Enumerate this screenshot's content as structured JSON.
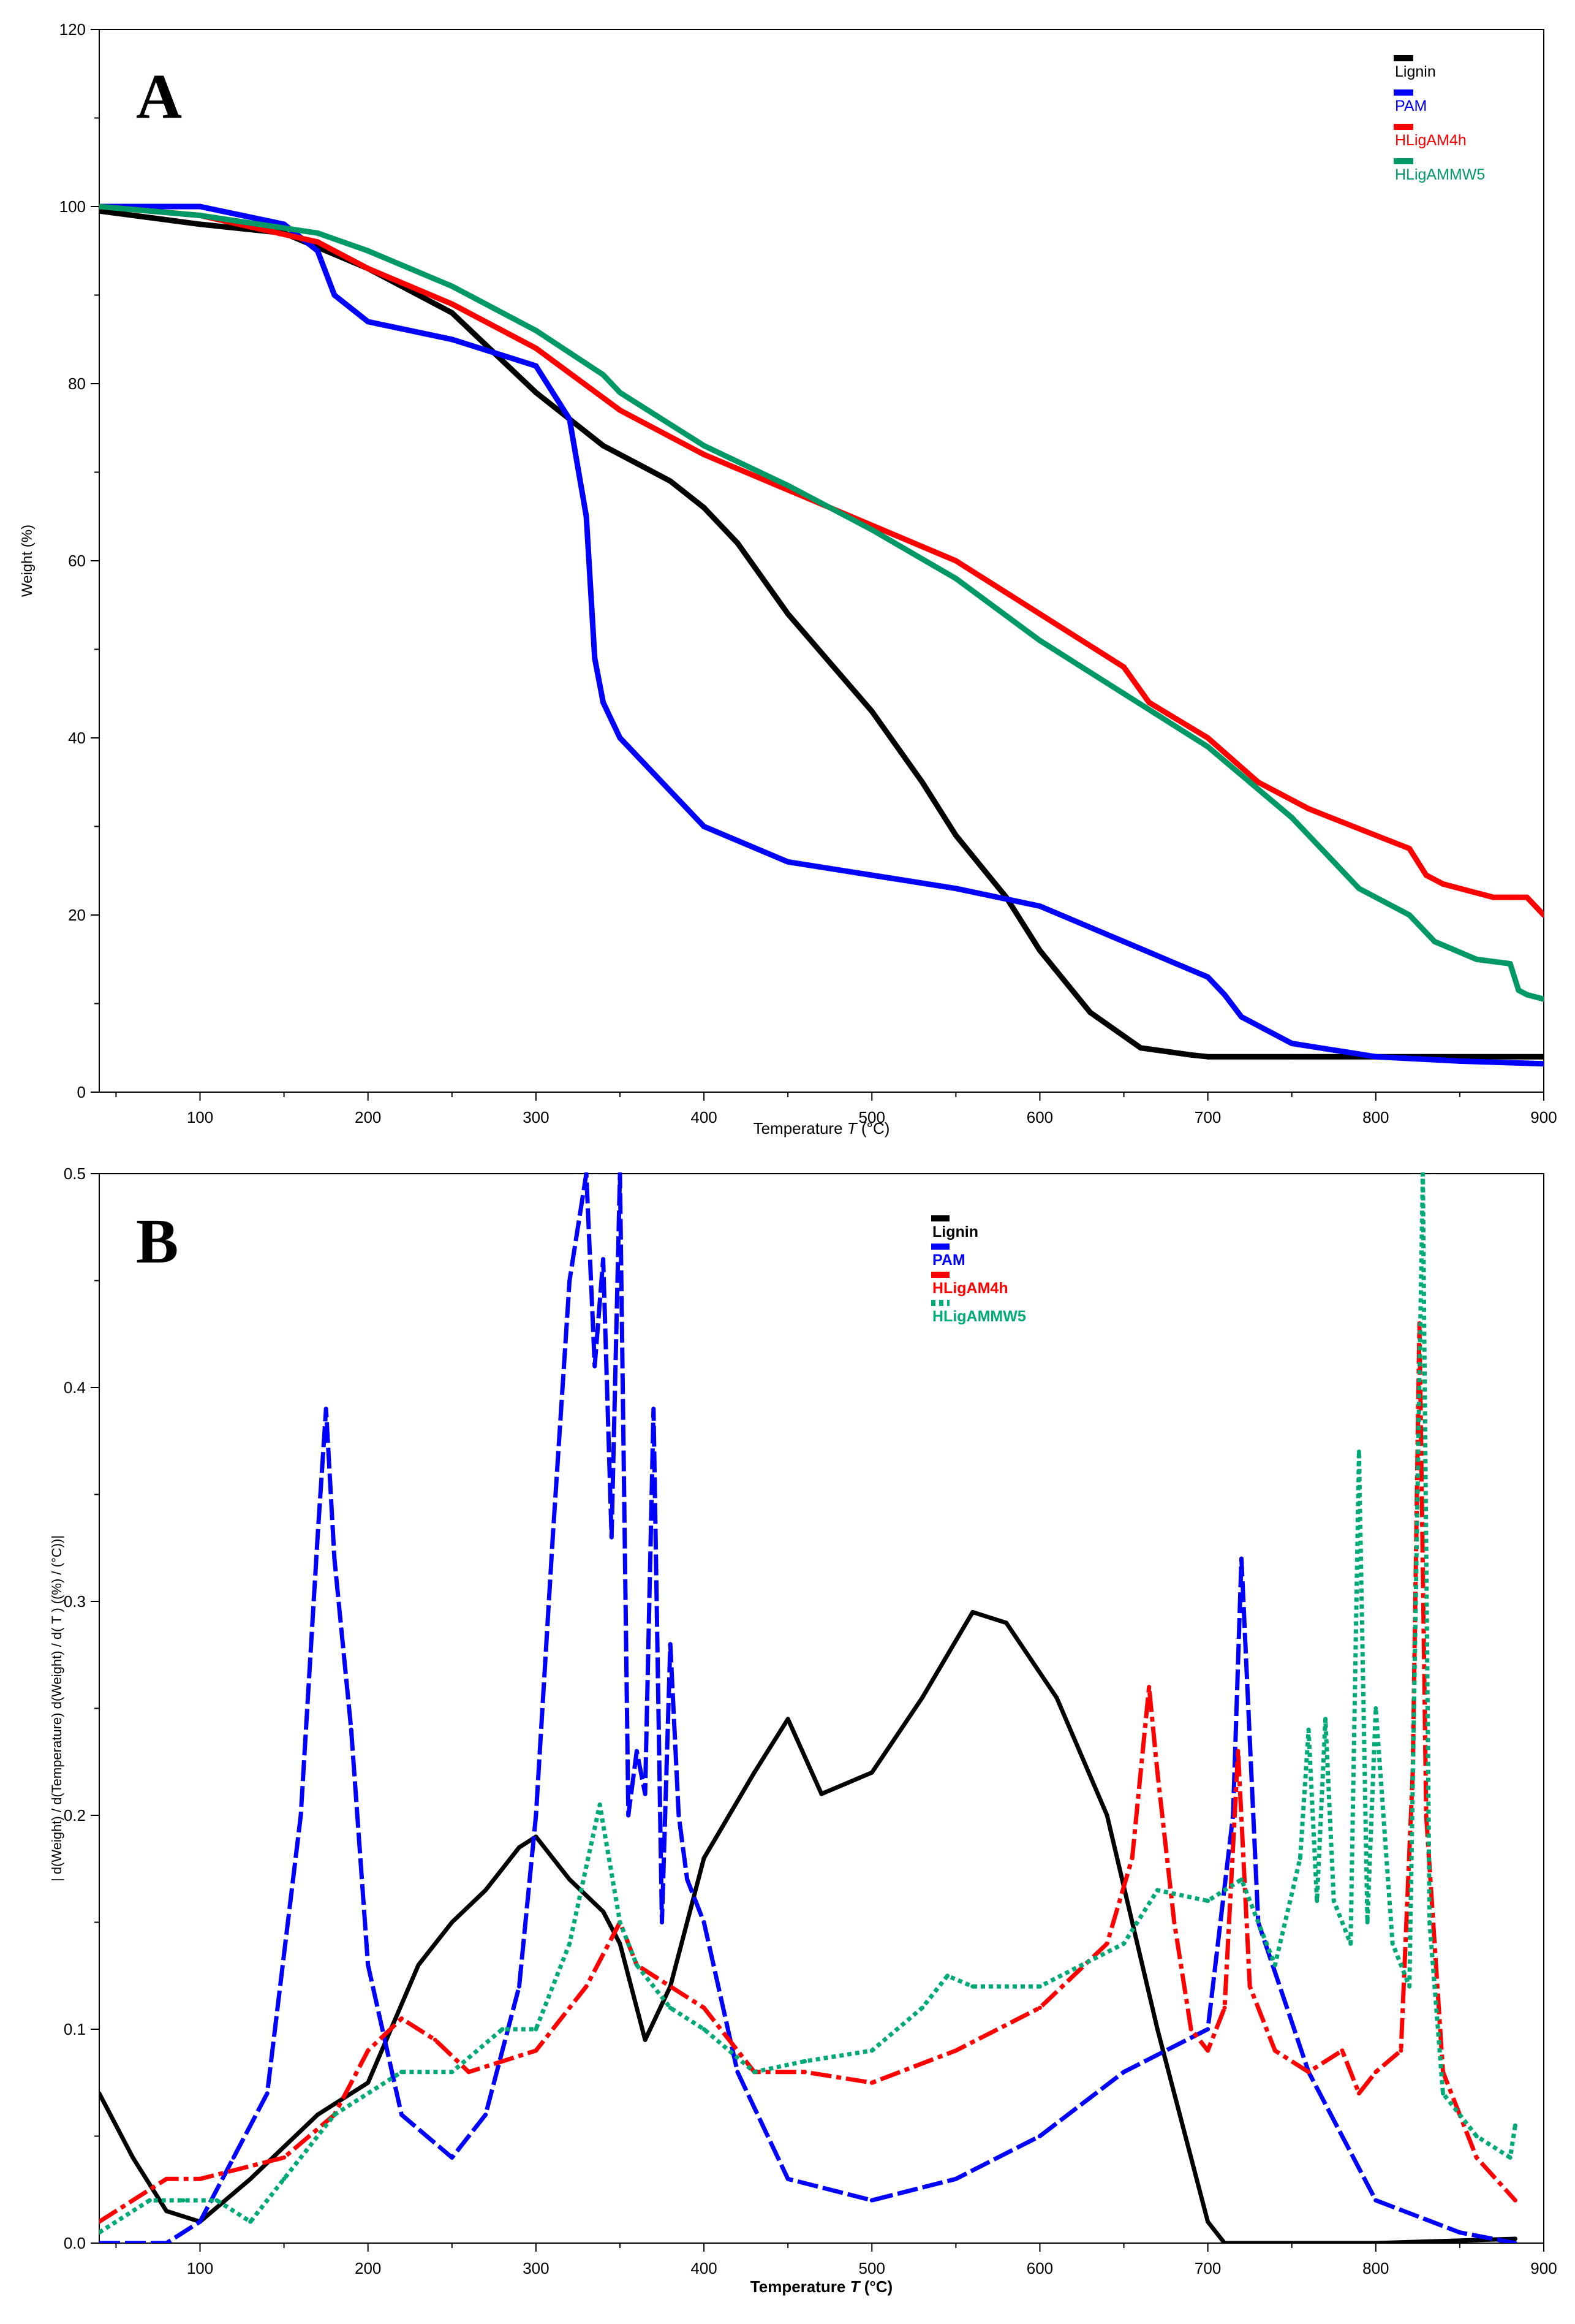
{
  "chart_data": [
    {
      "type": "line",
      "panel_label": "A",
      "xlabel": "Temperature",
      "xlabel_symbol": "T",
      "xlabel_unit": "(°C)",
      "ylabel": "Weight  (%)",
      "xlim": [
        40,
        900
      ],
      "ylim": [
        0,
        120
      ],
      "xticks": [
        "100",
        "200",
        "300",
        "400",
        "500",
        "600",
        "700",
        "800",
        "900"
      ],
      "xtick_values": [
        100,
        200,
        300,
        400,
        500,
        600,
        700,
        800,
        900
      ],
      "yticks": [
        "0",
        "20",
        "40",
        "60",
        "80",
        "100",
        "120"
      ],
      "ytick_values": [
        0,
        20,
        40,
        60,
        80,
        100,
        120
      ],
      "legend_position": "top-right",
      "series": [
        {
          "name": "Lignin",
          "color": "#000000",
          "style": "solid",
          "x": [
            40,
            100,
            150,
            200,
            250,
            300,
            340,
            360,
            380,
            400,
            420,
            450,
            500,
            530,
            550,
            580,
            600,
            630,
            660,
            690,
            700,
            750,
            800,
            850,
            900
          ],
          "y": [
            99.5,
            98,
            97,
            93,
            88,
            79,
            73,
            71,
            69,
            66,
            62,
            54,
            43,
            35,
            29,
            22,
            16,
            9,
            5,
            4.2,
            4,
            4,
            4,
            4,
            4
          ]
        },
        {
          "name": "PAM",
          "color": "#0000ff",
          "style": "solid",
          "x": [
            40,
            100,
            150,
            170,
            180,
            200,
            250,
            300,
            320,
            330,
            335,
            340,
            350,
            380,
            400,
            450,
            500,
            550,
            600,
            650,
            700,
            710,
            720,
            750,
            800,
            850,
            900
          ],
          "y": [
            100,
            100,
            98,
            95,
            90,
            87,
            85,
            82,
            76,
            65,
            49,
            44,
            40,
            34,
            30,
            26,
            24.5,
            23,
            21,
            17,
            13,
            11,
            8.5,
            5.5,
            4,
            3.5,
            3.2
          ]
        },
        {
          "name": "HLigAM4h",
          "color": "#ff0000",
          "style": "solid",
          "x": [
            40,
            100,
            170,
            200,
            250,
            300,
            350,
            400,
            450,
            500,
            550,
            600,
            650,
            665,
            700,
            730,
            760,
            800,
            820,
            830,
            840,
            870,
            880,
            890,
            900
          ],
          "y": [
            100,
            99,
            96,
            93,
            89,
            84,
            77,
            72,
            68,
            64,
            60,
            54,
            48,
            44,
            40,
            35,
            32,
            29,
            27.5,
            24.5,
            23.5,
            22,
            22,
            22,
            20
          ]
        },
        {
          "name": "HLigAMMW5",
          "color": "#009966",
          "style": "solid",
          "x": [
            40,
            100,
            170,
            200,
            250,
            300,
            340,
            350,
            400,
            450,
            500,
            550,
            600,
            650,
            700,
            750,
            770,
            790,
            820,
            835,
            860,
            880,
            885,
            890,
            900
          ],
          "y": [
            100,
            99,
            97,
            95,
            91,
            86,
            81,
            79,
            73,
            68.5,
            63.5,
            58,
            51,
            45,
            39,
            31,
            27,
            23,
            20,
            17,
            15,
            14.5,
            11.5,
            11,
            10.5
          ]
        }
      ]
    },
    {
      "type": "line",
      "panel_label": "B",
      "xlabel": "Temperature",
      "xlabel_symbol": "T",
      "xlabel_unit": "(°C)",
      "ylabel": "| d(Weight) / d(Temperature) d(Weight) / d( T ) ((%) / (°C))|",
      "xlim": [
        40,
        900
      ],
      "ylim": [
        0,
        0.5
      ],
      "xticks": [
        "100",
        "200",
        "300",
        "400",
        "500",
        "600",
        "700",
        "800",
        "900"
      ],
      "xtick_values": [
        100,
        200,
        300,
        400,
        500,
        600,
        700,
        800,
        900
      ],
      "yticks": [
        "0.0",
        "0.1",
        "0.2",
        "0.3",
        "0.4",
        "0.5"
      ],
      "ytick_values": [
        0,
        0.1,
        0.2,
        0.3,
        0.4,
        0.5
      ],
      "legend_position": "top-right",
      "series": [
        {
          "name": "Lignin",
          "color": "#000000",
          "style": "solid",
          "x": [
            40,
            60,
            80,
            100,
            130,
            170,
            200,
            230,
            250,
            270,
            290,
            300,
            320,
            340,
            350,
            360,
            365,
            380,
            400,
            430,
            450,
            470,
            500,
            530,
            560,
            580,
            610,
            640,
            670,
            700,
            710,
            750,
            800,
            883
          ],
          "y": [
            0.07,
            0.04,
            0.015,
            0.01,
            0.03,
            0.06,
            0.075,
            0.13,
            0.15,
            0.165,
            0.185,
            0.19,
            0.17,
            0.155,
            0.14,
            0.11,
            0.095,
            0.12,
            0.18,
            0.22,
            0.245,
            0.21,
            0.22,
            0.255,
            0.295,
            0.29,
            0.255,
            0.2,
            0.1,
            0.01,
            0.0,
            0.0,
            0.0,
            0.002
          ]
        },
        {
          "name": "PAM",
          "color": "#0000ff",
          "style": "dashed",
          "x": [
            40,
            80,
            100,
            120,
            140,
            160,
            170,
            175,
            180,
            190,
            200,
            220,
            250,
            270,
            290,
            300,
            310,
            320,
            330,
            335,
            340,
            345,
            350,
            355,
            360,
            365,
            370,
            375,
            380,
            385,
            390,
            400,
            420,
            450,
            500,
            550,
            600,
            650,
            700,
            715,
            720,
            730,
            760,
            800,
            850,
            883
          ],
          "y": [
            0.0,
            0.0,
            0.01,
            0.04,
            0.07,
            0.2,
            0.33,
            0.39,
            0.32,
            0.24,
            0.13,
            0.06,
            0.04,
            0.06,
            0.12,
            0.2,
            0.33,
            0.45,
            0.5,
            0.41,
            0.46,
            0.33,
            0.5,
            0.2,
            0.23,
            0.21,
            0.39,
            0.15,
            0.28,
            0.2,
            0.17,
            0.15,
            0.08,
            0.03,
            0.02,
            0.03,
            0.05,
            0.08,
            0.1,
            0.2,
            0.32,
            0.15,
            0.08,
            0.02,
            0.005,
            0.0
          ]
        },
        {
          "name": "HLigAM4h",
          "color": "#ff0000",
          "style": "dashdot",
          "x": [
            40,
            80,
            100,
            150,
            180,
            200,
            220,
            240,
            260,
            300,
            330,
            350,
            360,
            400,
            430,
            460,
            500,
            550,
            600,
            640,
            655,
            665,
            670,
            680,
            690,
            700,
            710,
            718,
            725,
            740,
            760,
            780,
            790,
            800,
            815,
            822,
            826,
            830,
            840,
            860,
            883
          ],
          "y": [
            0.01,
            0.03,
            0.03,
            0.04,
            0.06,
            0.09,
            0.105,
            0.095,
            0.08,
            0.09,
            0.12,
            0.15,
            0.13,
            0.11,
            0.08,
            0.08,
            0.075,
            0.09,
            0.11,
            0.14,
            0.18,
            0.26,
            0.22,
            0.15,
            0.1,
            0.09,
            0.11,
            0.23,
            0.12,
            0.09,
            0.08,
            0.09,
            0.07,
            0.08,
            0.09,
            0.22,
            0.43,
            0.2,
            0.08,
            0.04,
            0.02
          ]
        },
        {
          "name": "HLigAMMW5",
          "color": "#00aa77",
          "style": "dotted",
          "x": [
            40,
            70,
            90,
            110,
            130,
            150,
            180,
            220,
            250,
            280,
            300,
            320,
            338,
            350,
            360,
            380,
            400,
            430,
            460,
            500,
            530,
            545,
            560,
            600,
            650,
            670,
            700,
            720,
            740,
            755,
            760,
            765,
            770,
            775,
            785,
            790,
            795,
            800,
            810,
            820,
            828,
            832,
            840,
            860,
            880,
            883
          ],
          "y": [
            0.005,
            0.02,
            0.02,
            0.02,
            0.01,
            0.03,
            0.06,
            0.08,
            0.08,
            0.1,
            0.1,
            0.14,
            0.205,
            0.15,
            0.13,
            0.11,
            0.1,
            0.08,
            0.085,
            0.09,
            0.11,
            0.125,
            0.12,
            0.12,
            0.14,
            0.165,
            0.16,
            0.17,
            0.13,
            0.18,
            0.24,
            0.16,
            0.245,
            0.16,
            0.14,
            0.37,
            0.15,
            0.25,
            0.14,
            0.12,
            0.5,
            0.15,
            0.07,
            0.05,
            0.04,
            0.055
          ]
        }
      ]
    }
  ]
}
